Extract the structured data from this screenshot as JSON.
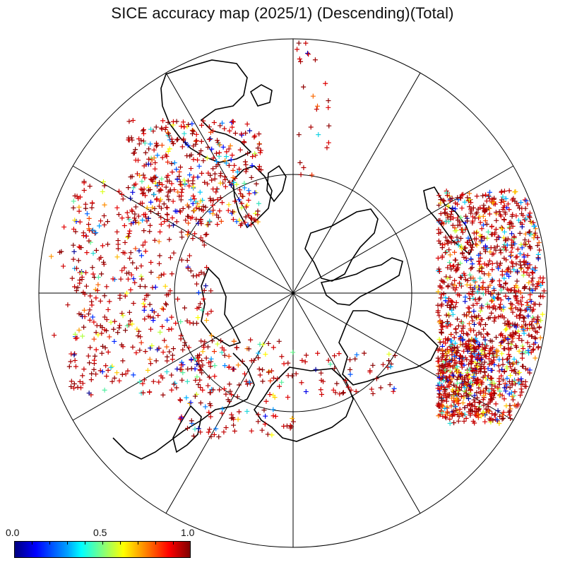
{
  "title": "SICE accuracy map (2025/1) (Descending)(Total)",
  "colorbar": {
    "labels": [
      "0.0",
      "0.5",
      "1.0"
    ],
    "min": 0.0,
    "max": 1.0,
    "colormap": "jet"
  },
  "map": {
    "projection": "polar-stereographic",
    "meridian_count": 12,
    "marker": "+",
    "colors": {
      "low": "#0000ff",
      "mid": "#00ffff",
      "high": "#7f0000",
      "coast": "#000000"
    }
  }
}
